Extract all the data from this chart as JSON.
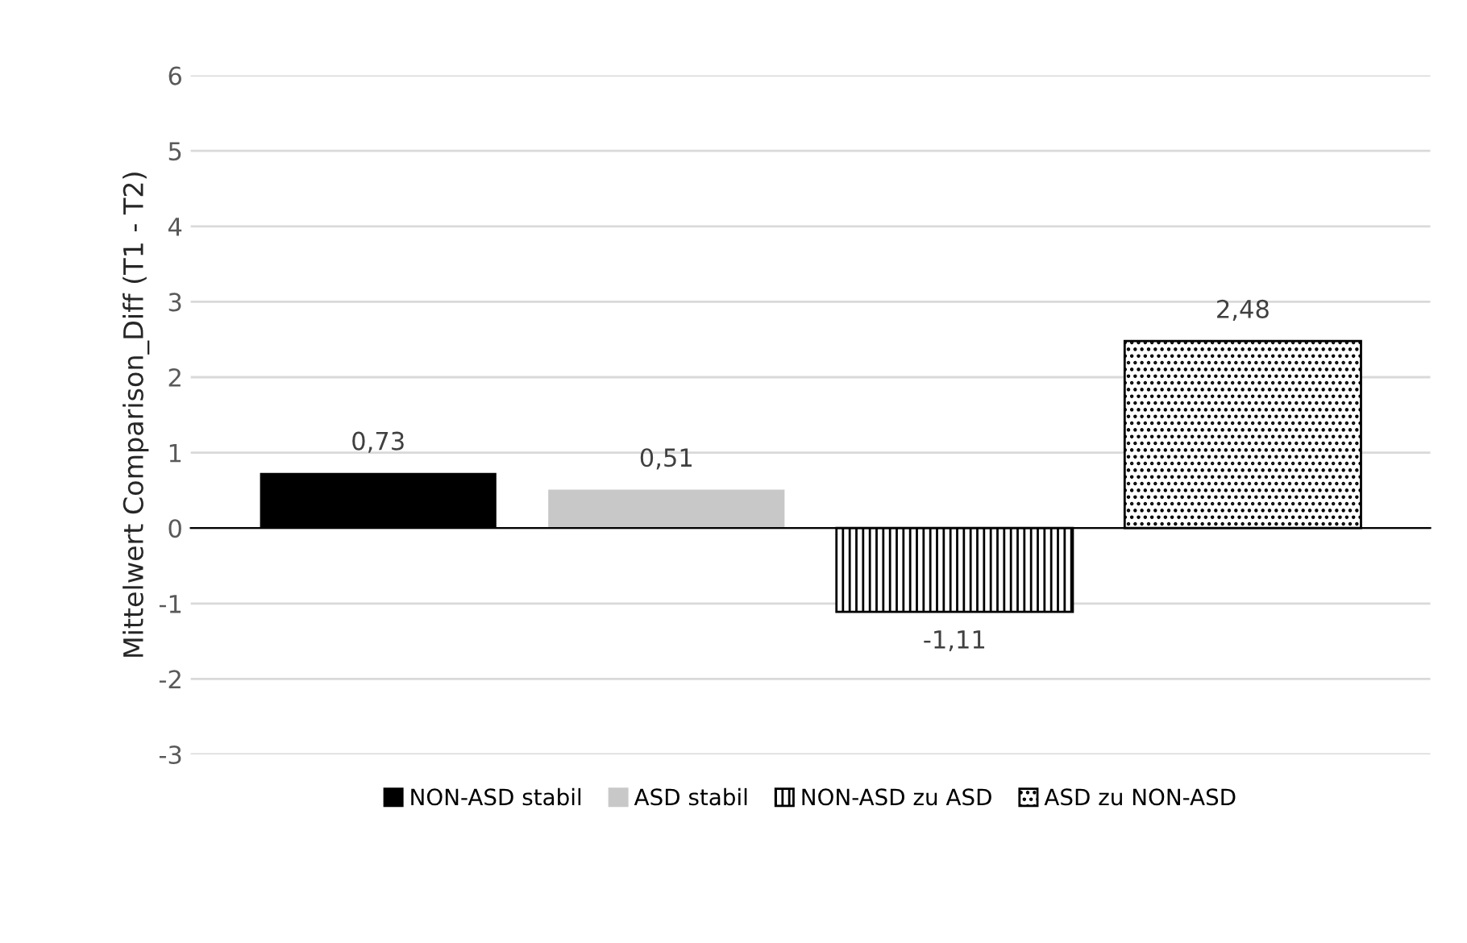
{
  "chart_data": {
    "type": "bar",
    "ylabel": "Mittelwert Comparison_Diff (T1 - T2)",
    "categories": [
      null
    ],
    "series": [
      {
        "name": "NON-ASD stabil",
        "color": "#000000",
        "values": [
          0.73
        ],
        "value_labels": [
          "0,73"
        ]
      },
      {
        "name": "ASD stabil",
        "color": "#c8c8c8",
        "values": [
          0.51
        ],
        "value_labels": [
          "0,51"
        ]
      },
      {
        "name": "NON-ASD zu ASD",
        "color": "#000000",
        "values": [
          -1.11
        ],
        "value_labels": [
          "-1,11"
        ]
      },
      {
        "name": "ASD zu NON-ASD",
        "color": "#000000",
        "values": [
          2.48
        ],
        "value_labels": [
          "2,48"
        ]
      }
    ],
    "ylim": [
      -3,
      6
    ],
    "yticks": [
      {
        "value": -3,
        "label": "-3"
      },
      {
        "value": -2,
        "label": "-2"
      },
      {
        "value": -1,
        "label": "-1"
      },
      0,
      1,
      2,
      3,
      4,
      5,
      6
    ],
    "grid": "y",
    "legend": "bottom"
  }
}
